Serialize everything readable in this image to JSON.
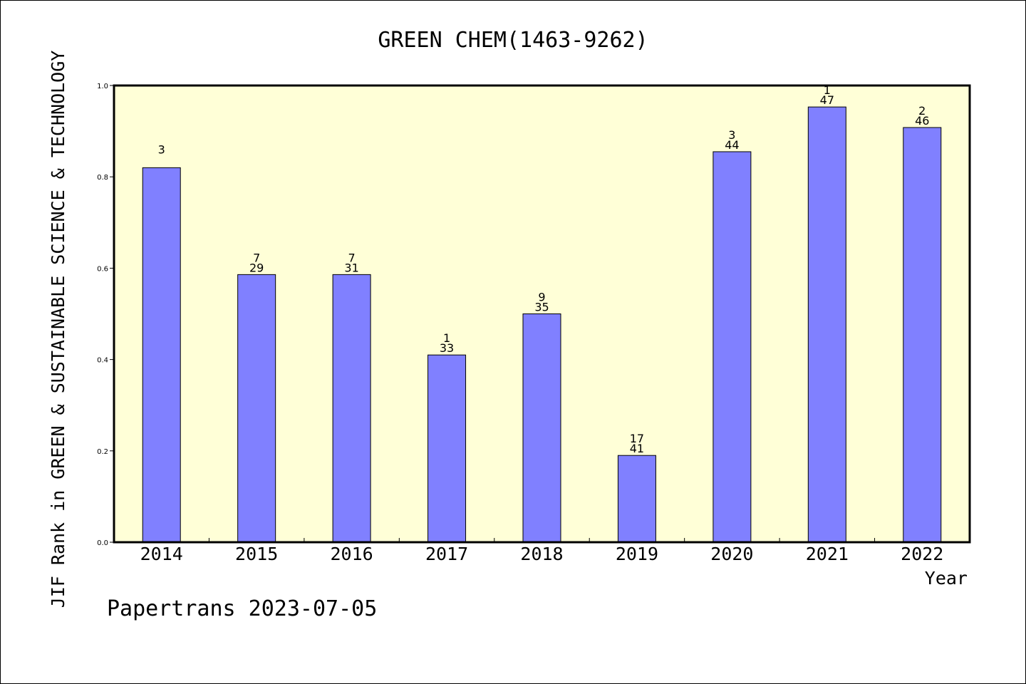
{
  "chart_data": {
    "type": "bar",
    "title": "GREEN CHEM(1463-9262)",
    "xlabel": "Year",
    "ylabel": "JIF Rank in GREEN & SUSTAINABLE SCIENCE & TECHNOLOGY",
    "ylim": [
      0,
      1.0
    ],
    "yticks": [
      "0.0",
      "0.2",
      "0.4",
      "0.6",
      "0.8",
      "1.0"
    ],
    "categories": [
      "2014",
      "2015",
      "2016",
      "2017",
      "2018",
      "2019",
      "2020",
      "2021",
      "2022"
    ],
    "values": [
      0.82,
      0.586,
      0.586,
      0.41,
      0.5,
      0.19,
      0.855,
      0.953,
      0.908
    ],
    "label_top": [
      "3",
      "7",
      "7",
      "1",
      "9",
      "17",
      "3",
      "1",
      "2"
    ],
    "label_bottom": [
      "",
      "29",
      "31",
      "33",
      "35",
      "41",
      "44",
      "47",
      "46"
    ],
    "grid": false,
    "footer": "Papertrans 2023-07-05",
    "colors": {
      "plot_background": "#ffffd7",
      "bar_fill": "#8080ff",
      "bar_stroke": "#000000"
    }
  }
}
